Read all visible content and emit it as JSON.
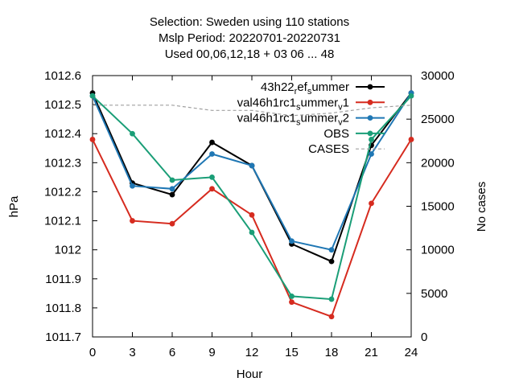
{
  "chart_data": {
    "type": "line",
    "title_lines": [
      "Selection: Sweden using   110 stations",
      "Mslp   Period: 20220701-20220731",
      "Used  00,06,12,18 + 03 06 ... 48"
    ],
    "xlabel": "Hour",
    "ylabel": "hPa",
    "y2label": "No cases",
    "x": [
      0,
      3,
      6,
      9,
      12,
      15,
      18,
      21,
      24
    ],
    "xlim": [
      0,
      24
    ],
    "ylim": [
      1011.7,
      1012.6
    ],
    "y2lim": [
      0,
      30000
    ],
    "xticks": [
      "0",
      "3",
      "6",
      "9",
      "12",
      "15",
      "18",
      "21",
      "24"
    ],
    "yticks": [
      "1011.7",
      "1011.8",
      "1011.9",
      "1012",
      "1012.1",
      "1012.2",
      "1012.3",
      "1012.4",
      "1012.5",
      "1012.6"
    ],
    "y2ticks": [
      "0",
      "5000",
      "10000",
      "15000",
      "20000",
      "25000",
      "30000"
    ],
    "grid": false,
    "legend_position": "top-right",
    "series": [
      {
        "name": "43h22_ref_summer",
        "legend_parts": [
          [
            "43h22",
            ""
          ],
          [
            "r",
            "sub"
          ],
          [
            "ef",
            ""
          ],
          [
            "s",
            "sub"
          ],
          [
            "ummer",
            ""
          ]
        ],
        "color": "#000000",
        "axis": "y",
        "values": [
          1012.54,
          1012.23,
          1012.19,
          1012.37,
          1012.29,
          1012.02,
          1011.96,
          1012.36,
          1012.54
        ]
      },
      {
        "name": "val46h1rc1_summer_v1",
        "legend_parts": [
          [
            "val46h1rc1",
            ""
          ],
          [
            "s",
            "sub"
          ],
          [
            "ummer",
            ""
          ],
          [
            "v",
            "sub"
          ],
          [
            "1",
            ""
          ]
        ],
        "color": "#d62b1f",
        "axis": "y",
        "values": [
          1012.38,
          1012.1,
          1012.09,
          1012.21,
          1012.12,
          1011.82,
          1011.77,
          1012.16,
          1012.38
        ]
      },
      {
        "name": "val46h1rc1_summer_v2",
        "legend_parts": [
          [
            "val46h1rc1",
            ""
          ],
          [
            "s",
            "sub"
          ],
          [
            "ummer",
            ""
          ],
          [
            "v",
            "sub"
          ],
          [
            "2",
            ""
          ]
        ],
        "color": "#1f77b4",
        "axis": "y",
        "values": [
          1012.53,
          1012.22,
          1012.21,
          1012.33,
          1012.29,
          1012.03,
          1012.0,
          1012.33,
          1012.54
        ]
      },
      {
        "name": "OBS",
        "legend_parts": [
          [
            "OBS",
            ""
          ]
        ],
        "color": "#1a9e77",
        "axis": "y",
        "values": [
          1012.53,
          1012.4,
          1012.24,
          1012.25,
          1012.06,
          1011.84,
          1011.83,
          1012.38,
          1012.53
        ]
      },
      {
        "name": "CASES",
        "legend_parts": [
          [
            "CASES",
            ""
          ]
        ],
        "color": "#a0a0a0",
        "axis": "y2",
        "dashed": true,
        "values": [
          26600,
          26600,
          26600,
          26000,
          26000,
          25400,
          25700,
          26300,
          26600
        ]
      }
    ]
  }
}
